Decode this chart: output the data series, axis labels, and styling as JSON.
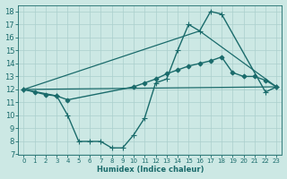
{
  "xlabel": "Humidex (Indice chaleur)",
  "xlim": [
    -0.5,
    23.5
  ],
  "ylim": [
    7,
    18.5
  ],
  "xticks": [
    0,
    1,
    2,
    3,
    4,
    5,
    6,
    7,
    8,
    9,
    10,
    11,
    12,
    13,
    14,
    15,
    16,
    17,
    18,
    19,
    20,
    21,
    22,
    23
  ],
  "yticks": [
    7,
    8,
    9,
    10,
    11,
    12,
    13,
    14,
    15,
    16,
    17,
    18
  ],
  "bg_color": "#cce8e4",
  "line_color": "#1a6b6b",
  "grid_color": "#aacfcc",
  "lines": [
    {
      "x": [
        0,
        1,
        2,
        3,
        4,
        10,
        11,
        12,
        13,
        14,
        15,
        16,
        17,
        18,
        19,
        20,
        21,
        22,
        23
      ],
      "y": [
        12.0,
        11.8,
        11.6,
        11.5,
        11.2,
        12.2,
        12.5,
        12.8,
        13.2,
        13.5,
        13.8,
        14.0,
        14.2,
        14.5,
        13.3,
        13.0,
        13.0,
        12.7,
        12.2
      ],
      "marker": "D",
      "markersize": 2.5,
      "linewidth": 1.0
    },
    {
      "x": [
        0,
        3,
        4,
        5,
        6,
        7,
        8,
        9,
        10,
        11,
        12,
        13,
        14,
        15,
        16,
        17,
        18,
        22,
        23
      ],
      "y": [
        12.0,
        11.5,
        10.0,
        8.0,
        8.0,
        8.0,
        7.5,
        7.5,
        8.5,
        9.8,
        12.5,
        12.8,
        15.0,
        17.0,
        16.5,
        18.0,
        17.8,
        11.8,
        12.2
      ],
      "marker": "+",
      "markersize": 4,
      "linewidth": 1.0
    },
    {
      "x": [
        0,
        23
      ],
      "y": [
        12.0,
        12.2
      ],
      "marker": null,
      "markersize": 0,
      "linewidth": 0.9
    },
    {
      "x": [
        0,
        16,
        23
      ],
      "y": [
        12.0,
        16.5,
        12.2
      ],
      "marker": null,
      "markersize": 0,
      "linewidth": 0.9
    }
  ]
}
